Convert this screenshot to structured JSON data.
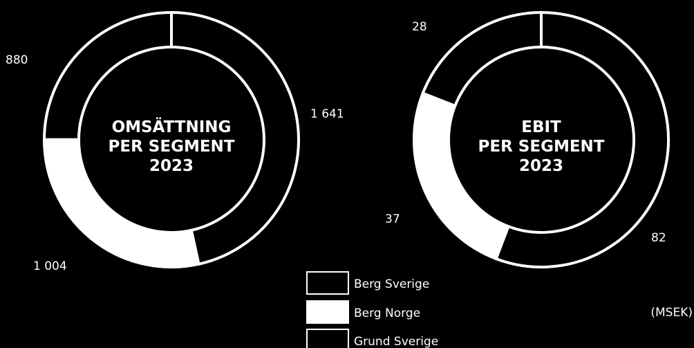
{
  "colors": {
    "berg_sverige": "#000000",
    "berg_norge": "#ffffff",
    "grund_sverige": "#000000",
    "outline": "#ffffff"
  },
  "unit_note": "(MSEK)",
  "legend": [
    {
      "label": "Berg Sverige",
      "color": "#000000"
    },
    {
      "label": "Berg Norge",
      "color": "#ffffff"
    },
    {
      "label": "Grund Sverige",
      "color": "#000000"
    }
  ],
  "chart_data": [
    {
      "type": "pie",
      "title_lines": [
        "OMSÄTTNING",
        "PER SEGMENT",
        "2023"
      ],
      "categories": [
        "Berg Sverige",
        "Berg Norge",
        "Grund Sverige"
      ],
      "values": [
        1641,
        1004,
        880
      ],
      "value_labels": [
        "1 641",
        "1 004",
        "880"
      ]
    },
    {
      "type": "pie",
      "title_lines": [
        "EBIT",
        "PER SEGMENT",
        "2023"
      ],
      "categories": [
        "Berg Sverige",
        "Berg Norge",
        "Grund Sverige"
      ],
      "values": [
        82,
        37,
        28
      ],
      "value_labels": [
        "82",
        "37",
        "28"
      ]
    }
  ]
}
